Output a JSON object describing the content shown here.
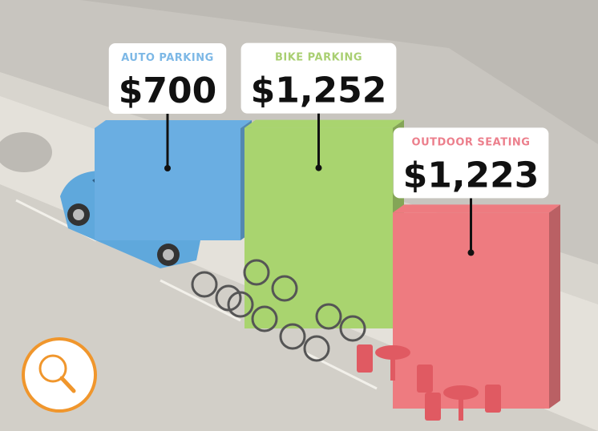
{
  "chart_data": {
    "type": "bar",
    "categories": [
      "AUTO PARKING",
      "BIKE PARKING",
      "OUTDOOR SEATING"
    ],
    "values": [
      700,
      1252,
      1223
    ],
    "value_labels": [
      "$700",
      "$1,252",
      "$1,223"
    ],
    "colors": [
      "#6aaee2",
      "#a9d46f",
      "#ee7b80"
    ],
    "label_colors": [
      "#7db8e6",
      "#a9cf72",
      "#ec7f8c"
    ]
  }
}
